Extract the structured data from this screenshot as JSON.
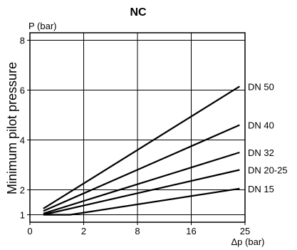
{
  "chart_data": {
    "type": "line",
    "title": "NC",
    "ylabel": "Minimum pilot pressure",
    "y_unit_label": "P (bar)",
    "x_unit_label": "Δp (bar)",
    "x_ticks": [
      "0",
      "2",
      "8",
      "16",
      "25"
    ],
    "y_ticks": [
      "1",
      "2",
      "4",
      "6",
      "8"
    ],
    "xlim": [
      0,
      4
    ],
    "ylim": [
      0.7,
      8.3
    ],
    "grid": true,
    "legend": "inline-right",
    "line_color": "#000000",
    "series": [
      {
        "name": "DN 50",
        "points": [
          [
            0.25,
            1.25
          ],
          [
            3.9,
            6.15
          ]
        ]
      },
      {
        "name": "DN 40",
        "points": [
          [
            0.25,
            1.15
          ],
          [
            3.9,
            4.6
          ]
        ]
      },
      {
        "name": "DN 32",
        "points": [
          [
            0.25,
            1.05
          ],
          [
            3.9,
            3.5
          ]
        ]
      },
      {
        "name": "DN 20-25",
        "points": [
          [
            0.25,
            1.0
          ],
          [
            3.9,
            2.8
          ]
        ]
      },
      {
        "name": "DN 15",
        "points": [
          [
            0.25,
            1.0
          ],
          [
            0.75,
            1.0
          ],
          [
            3.9,
            2.05
          ]
        ]
      }
    ]
  }
}
